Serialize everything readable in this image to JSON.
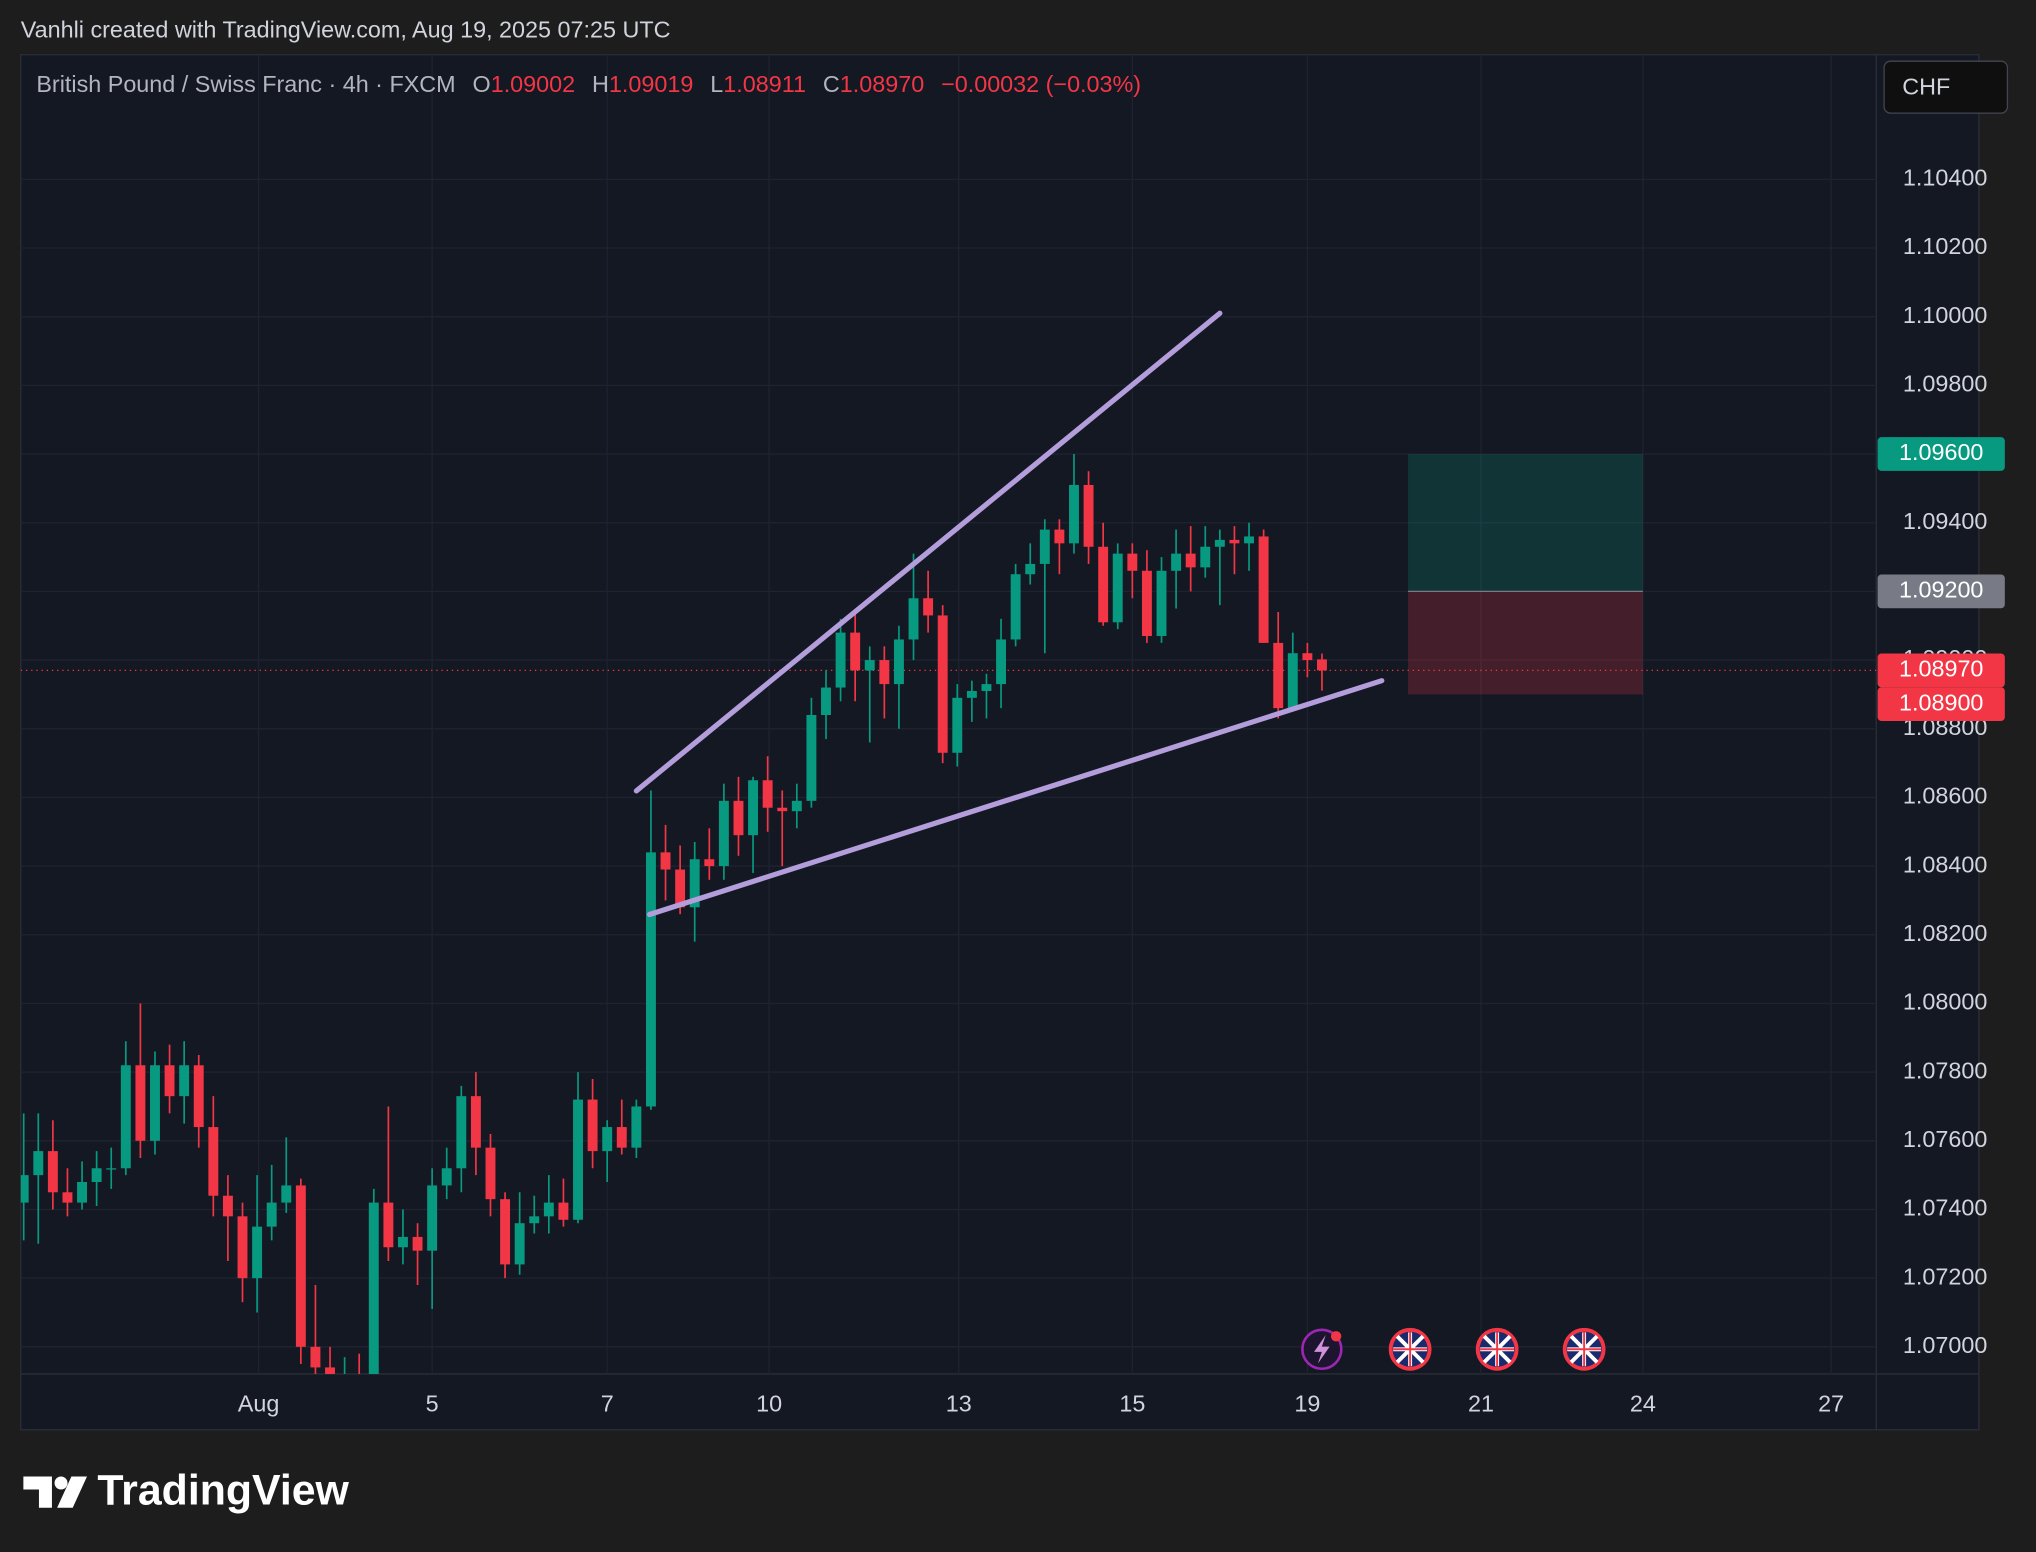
{
  "header": {
    "attribution": "Vanhli created with TradingView.com, Aug 19, 2025 07:25 UTC"
  },
  "branding": "TradingView",
  "chart_data": {
    "type": "candlestick",
    "title": "British Pound / Swiss Franc · 4h · FXCM",
    "ohlc_legend": [
      {
        "label": "O",
        "value": "1.09002"
      },
      {
        "label": "H",
        "value": "1.09019"
      },
      {
        "label": "L",
        "value": "1.08911"
      },
      {
        "label": "C",
        "value": "1.08970"
      }
    ],
    "change": "−0.00032 (−0.03%)",
    "currency": "CHF",
    "colors": {
      "up": "#089981",
      "down": "#f23645",
      "trendline": "#b39ddb"
    },
    "x": [
      0,
      1,
      2,
      3,
      4,
      5,
      6,
      7,
      8,
      9,
      10,
      11,
      12,
      13,
      14,
      15,
      16,
      17,
      18,
      19,
      20,
      21,
      22,
      23,
      24,
      25,
      26,
      27,
      28,
      29,
      30,
      31,
      32,
      33,
      34,
      35,
      36,
      37,
      38,
      39,
      40,
      41,
      42,
      43,
      44,
      45,
      46,
      47,
      48,
      49,
      50,
      51,
      52,
      53,
      54,
      55,
      56,
      57,
      58,
      59,
      60,
      61,
      62,
      63,
      64,
      65,
      66,
      67,
      68,
      69,
      70,
      71,
      72,
      73,
      74,
      75,
      76,
      77,
      78,
      79,
      80,
      81,
      82,
      83,
      84,
      85,
      86,
      87,
      88,
      89
    ],
    "open": [
      1.0742,
      1.075,
      1.0757,
      1.0745,
      1.0742,
      1.0748,
      1.0752,
      1.0752,
      1.0782,
      1.076,
      1.0782,
      1.0773,
      1.0782,
      1.0764,
      1.0744,
      1.0738,
      1.072,
      1.0735,
      1.0742,
      1.0747,
      1.07,
      1.0694,
      1.0686,
      1.0692,
      1.0689,
      1.0742,
      1.0729,
      1.0732,
      1.0728,
      1.0747,
      1.0752,
      1.0773,
      1.0758,
      1.0743,
      1.0724,
      1.0736,
      1.0738,
      1.0742,
      1.0737,
      1.0772,
      1.0757,
      1.0764,
      1.0758,
      1.077,
      1.0844,
      1.0839,
      1.0828,
      1.0842,
      1.084,
      1.0859,
      1.0849,
      1.0865,
      1.0857,
      1.0856,
      1.0859,
      1.0884,
      1.0892,
      1.0908,
      1.0897,
      1.09,
      1.0893,
      1.0906,
      1.0918,
      1.0913,
      1.0873,
      1.0889,
      1.0891,
      1.0893,
      1.0906,
      1.0925,
      1.0928,
      1.0938,
      1.0934,
      1.0951,
      1.0933,
      1.0911,
      1.0931,
      1.0926,
      1.0907,
      1.0926,
      1.0931,
      1.0927,
      1.0933,
      1.0935,
      1.0934,
      1.0936,
      1.0905,
      1.0886,
      1.0902,
      1.09002
    ],
    "high": [
      1.0768,
      1.0768,
      1.0766,
      1.0752,
      1.0754,
      1.0757,
      1.0758,
      1.0789,
      1.08,
      1.0786,
      1.0788,
      1.0789,
      1.0785,
      1.0773,
      1.075,
      1.0742,
      1.075,
      1.0753,
      1.0761,
      1.0749,
      1.0718,
      1.07,
      1.0697,
      1.0698,
      1.0746,
      1.077,
      1.074,
      1.0736,
      1.0752,
      1.0758,
      1.0776,
      1.078,
      1.0762,
      1.0745,
      1.0745,
      1.0744,
      1.075,
      1.0749,
      1.078,
      1.0778,
      1.0766,
      1.0772,
      1.0772,
      1.0862,
      1.0852,
      1.0846,
      1.0847,
      1.0851,
      1.0864,
      1.0866,
      1.0866,
      1.0872,
      1.0862,
      1.0864,
      1.0889,
      1.0897,
      1.0912,
      1.0914,
      1.0904,
      1.0904,
      1.091,
      1.0931,
      1.0926,
      1.0916,
      1.0893,
      1.0894,
      1.0896,
      1.0912,
      1.0928,
      1.0934,
      1.0941,
      1.0941,
      1.096,
      1.0955,
      1.094,
      1.0934,
      1.0934,
      1.0932,
      1.093,
      1.0938,
      1.0939,
      1.0939,
      1.0938,
      1.0939,
      1.094,
      1.0938,
      1.0914,
      1.0908,
      1.0905,
      1.09019
    ],
    "low": [
      1.0731,
      1.073,
      1.074,
      1.0738,
      1.074,
      1.0741,
      1.0746,
      1.075,
      1.0755,
      1.0756,
      1.0768,
      1.0765,
      1.0758,
      1.0738,
      1.0725,
      1.0713,
      1.071,
      1.0731,
      1.0739,
      1.0695,
      1.0682,
      1.068,
      1.0682,
      1.0684,
      1.0688,
      1.0725,
      1.0724,
      1.0718,
      1.0711,
      1.0743,
      1.0745,
      1.075,
      1.0738,
      1.072,
      1.0721,
      1.0733,
      1.0733,
      1.0735,
      1.0736,
      1.0752,
      1.0748,
      1.0756,
      1.0755,
      1.0769,
      1.083,
      1.0826,
      1.0818,
      1.0836,
      1.0836,
      1.0843,
      1.0838,
      1.085,
      1.084,
      1.0851,
      1.0857,
      1.0877,
      1.0888,
      1.0888,
      1.0876,
      1.0883,
      1.088,
      1.09,
      1.0908,
      1.087,
      1.0869,
      1.0882,
      1.0883,
      1.0886,
      1.0904,
      1.0922,
      1.0902,
      1.0925,
      1.0931,
      1.0928,
      1.091,
      1.0909,
      1.0918,
      1.0905,
      1.0905,
      1.0915,
      1.092,
      1.0924,
      1.0916,
      1.0925,
      1.0926,
      1.0905,
      1.0883,
      1.0885,
      1.0895,
      1.08911
    ],
    "close": [
      1.075,
      1.0757,
      1.0745,
      1.0742,
      1.0748,
      1.0752,
      1.0752,
      1.0782,
      1.076,
      1.0782,
      1.0773,
      1.0782,
      1.0764,
      1.0744,
      1.0738,
      1.072,
      1.0735,
      1.0742,
      1.0747,
      1.07,
      1.0694,
      1.0686,
      1.0692,
      1.0689,
      1.0742,
      1.0729,
      1.0732,
      1.0728,
      1.0747,
      1.0752,
      1.0773,
      1.0758,
      1.0743,
      1.0724,
      1.0736,
      1.0738,
      1.0742,
      1.0737,
      1.0772,
      1.0757,
      1.0764,
      1.0758,
      1.077,
      1.0844,
      1.0839,
      1.0828,
      1.0842,
      1.084,
      1.0859,
      1.0849,
      1.0865,
      1.0857,
      1.0856,
      1.0859,
      1.0884,
      1.0892,
      1.0908,
      1.0897,
      1.09,
      1.0893,
      1.0906,
      1.0918,
      1.0913,
      1.0873,
      1.0889,
      1.0891,
      1.0893,
      1.0906,
      1.0925,
      1.0928,
      1.0938,
      1.0934,
      1.0951,
      1.0933,
      1.0911,
      1.0931,
      1.0926,
      1.0907,
      1.0926,
      1.0931,
      1.0927,
      1.0933,
      1.0935,
      1.0934,
      1.0936,
      1.0905,
      1.0886,
      1.0902,
      1.09,
      1.0897
    ],
    "xlim": [
      -0.2,
      127.0
    ],
    "xticks": [
      {
        "value": 16.1,
        "label": "Aug"
      },
      {
        "value": 28.0,
        "label": "5"
      },
      {
        "value": 40.0,
        "label": "7"
      },
      {
        "value": 51.1,
        "label": "10"
      },
      {
        "value": 64.1,
        "label": "13"
      },
      {
        "value": 76.0,
        "label": "15"
      },
      {
        "value": 88.0,
        "label": "19"
      },
      {
        "value": 99.9,
        "label": "21"
      },
      {
        "value": 111.0,
        "label": "24"
      },
      {
        "value": 123.9,
        "label": "27"
      }
    ],
    "ylim": [
      1.06921,
      1.10763
    ],
    "yticks": [
      {
        "value": 1.07,
        "label": "1.07000"
      },
      {
        "value": 1.072,
        "label": "1.07200"
      },
      {
        "value": 1.074,
        "label": "1.07400"
      },
      {
        "value": 1.076,
        "label": "1.07600"
      },
      {
        "value": 1.078,
        "label": "1.07800"
      },
      {
        "value": 1.08,
        "label": "1.08000"
      },
      {
        "value": 1.082,
        "label": "1.08200"
      },
      {
        "value": 1.084,
        "label": "1.08400"
      },
      {
        "value": 1.086,
        "label": "1.08600"
      },
      {
        "value": 1.088,
        "label": "1.08800"
      },
      {
        "value": 1.09,
        "label": "1.09000"
      },
      {
        "value": 1.092,
        "label": "1.09200"
      },
      {
        "value": 1.094,
        "label": "1.09400"
      },
      {
        "value": 1.096,
        "label": "1.09600"
      },
      {
        "value": 1.098,
        "label": "1.09800"
      },
      {
        "value": 1.1,
        "label": "1.10000"
      },
      {
        "value": 1.102,
        "label": "1.10200"
      },
      {
        "value": 1.104,
        "label": "1.10400"
      }
    ],
    "grid": true,
    "trendlines": [
      {
        "x": [
          42.0,
          82.0
        ],
        "y": [
          1.08619,
          1.1001
        ]
      },
      {
        "x": [
          42.9,
          93.1
        ],
        "y": [
          1.08259,
          1.0894
        ]
      }
    ],
    "position": {
      "x": [
        94.9,
        111.0
      ],
      "target": 1.096,
      "entry": 1.092,
      "stop": 1.089
    },
    "last_price": 1.0897,
    "price_labels": [
      {
        "value": 1.096,
        "label": "1.09600",
        "color": "#089981"
      },
      {
        "value": 1.092,
        "label": "1.09200",
        "color": "#787b86"
      },
      {
        "value": 1.0897,
        "label": "1.08970",
        "color": "#f23645"
      },
      {
        "value": 1.089,
        "label": "1.08900",
        "color": "#f23645"
      }
    ]
  }
}
